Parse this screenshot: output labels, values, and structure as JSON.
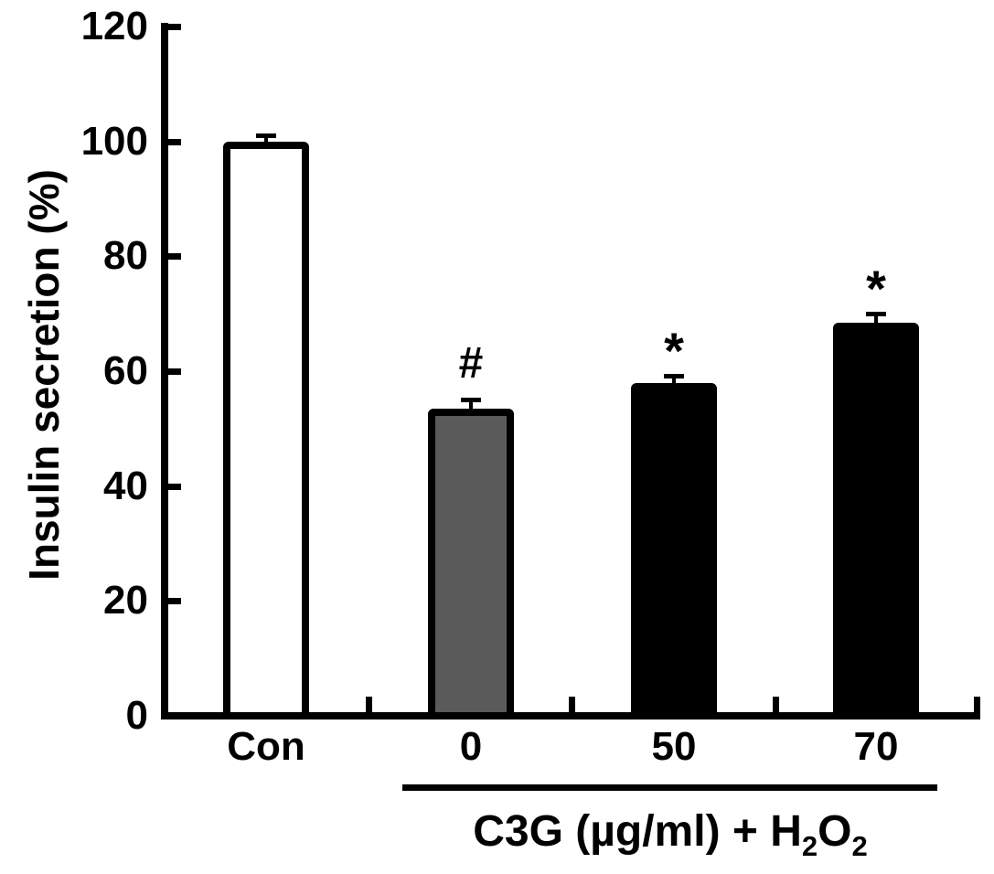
{
  "figure": {
    "ylabel": "Insulin secretion (%)",
    "group_label": {
      "prefix": "C3G (µg/ml) + H",
      "sub1": "2",
      "mid": "O",
      "sub2": "2"
    }
  },
  "chart_data": {
    "type": "bar",
    "title": "",
    "xlabel": "",
    "ylabel": "Insulin secretion (%)",
    "categories": [
      "Con",
      "0",
      "50",
      "70"
    ],
    "values": [
      100,
      53.5,
      58,
      68.5
    ],
    "errors": [
      1,
      1.5,
      1.2,
      1.5
    ],
    "annotations": [
      "",
      "#",
      "*",
      "*"
    ],
    "bar_fill_colors": [
      "#ffffff",
      "#5a5a5a",
      "#000000",
      "#000000"
    ],
    "bar_edge_color": "#000000",
    "ylim": [
      0,
      120
    ],
    "yticks": [
      0,
      20,
      40,
      60,
      80,
      100,
      120
    ],
    "grid": false,
    "legend": false,
    "group_label_text": "C3G (µg/ml) + H2O2",
    "grouped_categories": [
      "0",
      "50",
      "70"
    ]
  }
}
